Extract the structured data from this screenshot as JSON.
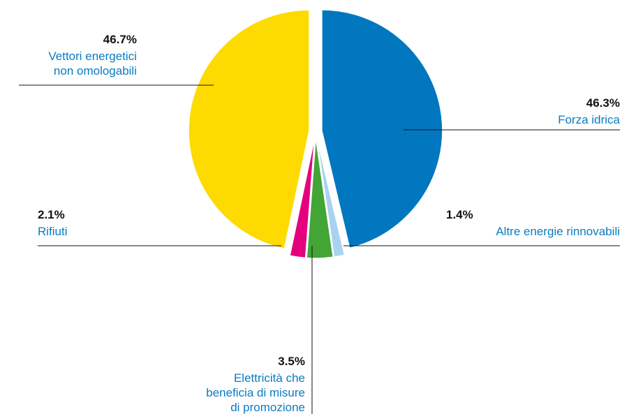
{
  "chart_data": {
    "type": "pie",
    "title": "",
    "slices": [
      {
        "name": "Forza idrica",
        "value": 46.3,
        "label": "46.3%",
        "color": "#0077bf"
      },
      {
        "name": "Altre energie rinnovabili",
        "value": 1.4,
        "label": "1.4%",
        "color": "#a8d2ef"
      },
      {
        "name": "Elettricità che beneficia di misure di promozione",
        "value": 3.5,
        "label": "3.5%",
        "color": "#43a536"
      },
      {
        "name": "Rifiuti",
        "value": 2.1,
        "label": "2.1%",
        "color": "#e5007e"
      },
      {
        "name": "Vettori energetici non omologabili",
        "value": 46.7,
        "label": "46.7%",
        "color": "#fddb00"
      }
    ],
    "legend": "none",
    "leader_line_color": "#111111",
    "label_color": "#0a7bc2"
  }
}
